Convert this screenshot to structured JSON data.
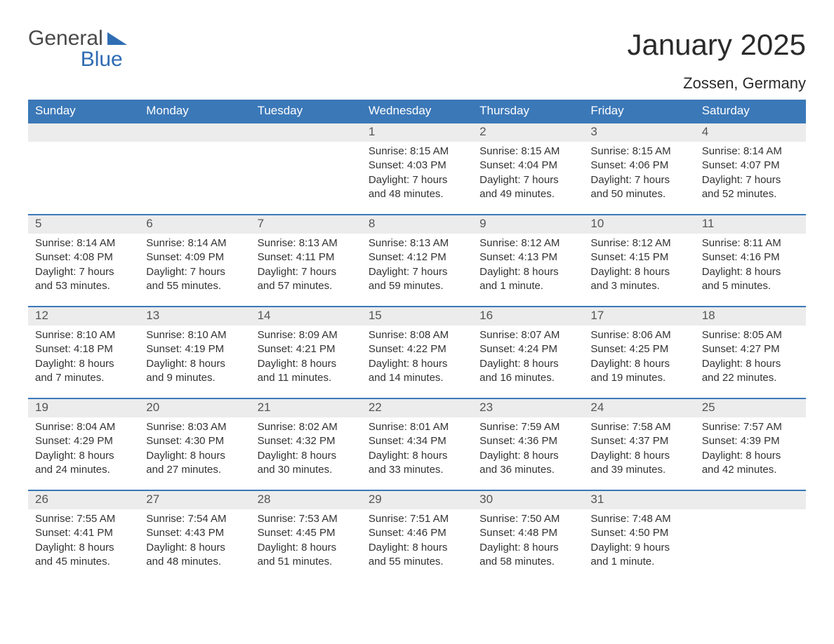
{
  "brand": {
    "top": "General",
    "bottom": "Blue"
  },
  "title": "January 2025",
  "location": "Zossen, Germany",
  "colors": {
    "header_bg": "#3b78b8",
    "header_text": "#ffffff",
    "daynum_bg": "#ececec",
    "border": "#3b78b8",
    "brand_blue": "#2f6db3"
  },
  "weekdays": [
    "Sunday",
    "Monday",
    "Tuesday",
    "Wednesday",
    "Thursday",
    "Friday",
    "Saturday"
  ],
  "labels": {
    "sunrise": "Sunrise:",
    "sunset": "Sunset:",
    "daylight": "Daylight:"
  },
  "weeks": [
    [
      {
        "empty": true
      },
      {
        "empty": true
      },
      {
        "empty": true
      },
      {
        "num": "1",
        "sunrise": "8:15 AM",
        "sunset": "4:03 PM",
        "daylight_l1": "7 hours",
        "daylight_l2": "and 48 minutes."
      },
      {
        "num": "2",
        "sunrise": "8:15 AM",
        "sunset": "4:04 PM",
        "daylight_l1": "7 hours",
        "daylight_l2": "and 49 minutes."
      },
      {
        "num": "3",
        "sunrise": "8:15 AM",
        "sunset": "4:06 PM",
        "daylight_l1": "7 hours",
        "daylight_l2": "and 50 minutes."
      },
      {
        "num": "4",
        "sunrise": "8:14 AM",
        "sunset": "4:07 PM",
        "daylight_l1": "7 hours",
        "daylight_l2": "and 52 minutes."
      }
    ],
    [
      {
        "num": "5",
        "sunrise": "8:14 AM",
        "sunset": "4:08 PM",
        "daylight_l1": "7 hours",
        "daylight_l2": "and 53 minutes."
      },
      {
        "num": "6",
        "sunrise": "8:14 AM",
        "sunset": "4:09 PM",
        "daylight_l1": "7 hours",
        "daylight_l2": "and 55 minutes."
      },
      {
        "num": "7",
        "sunrise": "8:13 AM",
        "sunset": "4:11 PM",
        "daylight_l1": "7 hours",
        "daylight_l2": "and 57 minutes."
      },
      {
        "num": "8",
        "sunrise": "8:13 AM",
        "sunset": "4:12 PM",
        "daylight_l1": "7 hours",
        "daylight_l2": "and 59 minutes."
      },
      {
        "num": "9",
        "sunrise": "8:12 AM",
        "sunset": "4:13 PM",
        "daylight_l1": "8 hours",
        "daylight_l2": "and 1 minute."
      },
      {
        "num": "10",
        "sunrise": "8:12 AM",
        "sunset": "4:15 PM",
        "daylight_l1": "8 hours",
        "daylight_l2": "and 3 minutes."
      },
      {
        "num": "11",
        "sunrise": "8:11 AM",
        "sunset": "4:16 PM",
        "daylight_l1": "8 hours",
        "daylight_l2": "and 5 minutes."
      }
    ],
    [
      {
        "num": "12",
        "sunrise": "8:10 AM",
        "sunset": "4:18 PM",
        "daylight_l1": "8 hours",
        "daylight_l2": "and 7 minutes."
      },
      {
        "num": "13",
        "sunrise": "8:10 AM",
        "sunset": "4:19 PM",
        "daylight_l1": "8 hours",
        "daylight_l2": "and 9 minutes."
      },
      {
        "num": "14",
        "sunrise": "8:09 AM",
        "sunset": "4:21 PM",
        "daylight_l1": "8 hours",
        "daylight_l2": "and 11 minutes."
      },
      {
        "num": "15",
        "sunrise": "8:08 AM",
        "sunset": "4:22 PM",
        "daylight_l1": "8 hours",
        "daylight_l2": "and 14 minutes."
      },
      {
        "num": "16",
        "sunrise": "8:07 AM",
        "sunset": "4:24 PM",
        "daylight_l1": "8 hours",
        "daylight_l2": "and 16 minutes."
      },
      {
        "num": "17",
        "sunrise": "8:06 AM",
        "sunset": "4:25 PM",
        "daylight_l1": "8 hours",
        "daylight_l2": "and 19 minutes."
      },
      {
        "num": "18",
        "sunrise": "8:05 AM",
        "sunset": "4:27 PM",
        "daylight_l1": "8 hours",
        "daylight_l2": "and 22 minutes."
      }
    ],
    [
      {
        "num": "19",
        "sunrise": "8:04 AM",
        "sunset": "4:29 PM",
        "daylight_l1": "8 hours",
        "daylight_l2": "and 24 minutes."
      },
      {
        "num": "20",
        "sunrise": "8:03 AM",
        "sunset": "4:30 PM",
        "daylight_l1": "8 hours",
        "daylight_l2": "and 27 minutes."
      },
      {
        "num": "21",
        "sunrise": "8:02 AM",
        "sunset": "4:32 PM",
        "daylight_l1": "8 hours",
        "daylight_l2": "and 30 minutes."
      },
      {
        "num": "22",
        "sunrise": "8:01 AM",
        "sunset": "4:34 PM",
        "daylight_l1": "8 hours",
        "daylight_l2": "and 33 minutes."
      },
      {
        "num": "23",
        "sunrise": "7:59 AM",
        "sunset": "4:36 PM",
        "daylight_l1": "8 hours",
        "daylight_l2": "and 36 minutes."
      },
      {
        "num": "24",
        "sunrise": "7:58 AM",
        "sunset": "4:37 PM",
        "daylight_l1": "8 hours",
        "daylight_l2": "and 39 minutes."
      },
      {
        "num": "25",
        "sunrise": "7:57 AM",
        "sunset": "4:39 PM",
        "daylight_l1": "8 hours",
        "daylight_l2": "and 42 minutes."
      }
    ],
    [
      {
        "num": "26",
        "sunrise": "7:55 AM",
        "sunset": "4:41 PM",
        "daylight_l1": "8 hours",
        "daylight_l2": "and 45 minutes."
      },
      {
        "num": "27",
        "sunrise": "7:54 AM",
        "sunset": "4:43 PM",
        "daylight_l1": "8 hours",
        "daylight_l2": "and 48 minutes."
      },
      {
        "num": "28",
        "sunrise": "7:53 AM",
        "sunset": "4:45 PM",
        "daylight_l1": "8 hours",
        "daylight_l2": "and 51 minutes."
      },
      {
        "num": "29",
        "sunrise": "7:51 AM",
        "sunset": "4:46 PM",
        "daylight_l1": "8 hours",
        "daylight_l2": "and 55 minutes."
      },
      {
        "num": "30",
        "sunrise": "7:50 AM",
        "sunset": "4:48 PM",
        "daylight_l1": "8 hours",
        "daylight_l2": "and 58 minutes."
      },
      {
        "num": "31",
        "sunrise": "7:48 AM",
        "sunset": "4:50 PM",
        "daylight_l1": "9 hours",
        "daylight_l2": "and 1 minute."
      },
      {
        "empty": true
      }
    ]
  ]
}
